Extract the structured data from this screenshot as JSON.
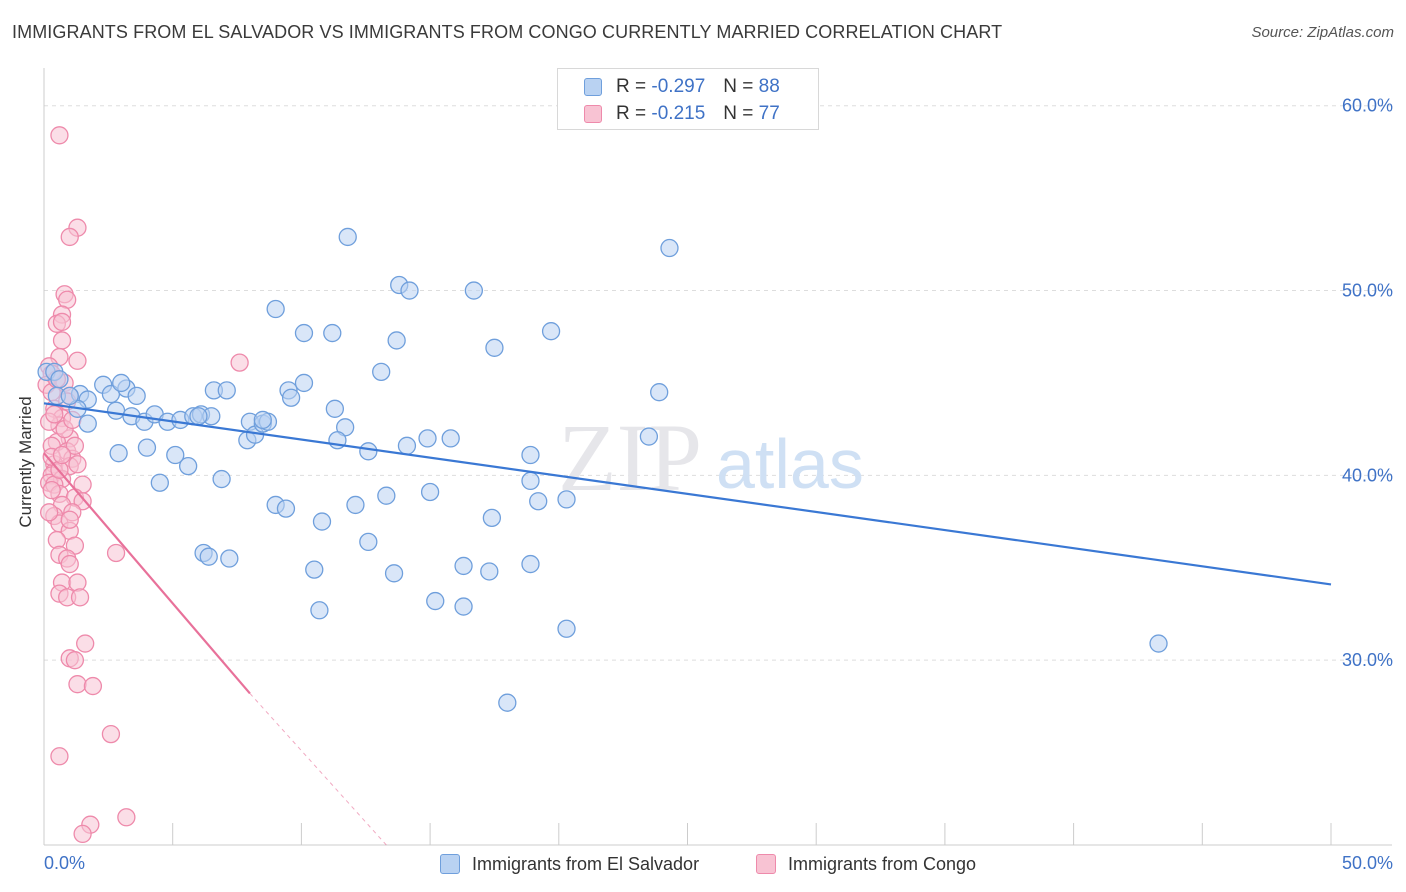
{
  "header": {
    "title": "IMMIGRANTS FROM EL SALVADOR VS IMMIGRANTS FROM CONGO CURRENTLY MARRIED CORRELATION CHART",
    "source": "Source: ZipAtlas.com"
  },
  "legend_top": {
    "rows": [
      {
        "r_label": "R =",
        "r_value": "-0.297",
        "n_label": "N =",
        "n_value": "88"
      },
      {
        "r_label": "R =",
        "r_value": "-0.215",
        "n_label": "N =",
        "n_value": "77"
      }
    ]
  },
  "legend_bottom": {
    "items": [
      {
        "label": "Immigrants from El Salvador"
      },
      {
        "label": "Immigrants from Congo"
      }
    ]
  },
  "watermark": {
    "zip": "ZIP",
    "atlas": "atlas"
  },
  "colors": {
    "blue_fill": "#b9d2f2",
    "blue_stroke": "#6f9fdc",
    "blue_line": "#3a78d4",
    "pink_fill": "#f8c3d3",
    "pink_stroke": "#ee8aab",
    "pink_line": "#e8719a",
    "grid": "#dddddd",
    "axis_label": "#3f72c6"
  },
  "chart_data": {
    "type": "scatter",
    "title": "IMMIGRANTS FROM EL SALVADOR VS IMMIGRANTS FROM CONGO CURRENTLY MARRIED CORRELATION CHART",
    "xlabel": "",
    "ylabel": "Currently Married",
    "xlim": [
      0,
      50
    ],
    "ylim": [
      20,
      61.5
    ],
    "x_tick_labels": [
      "0.0%",
      "50.0%"
    ],
    "y_ticks": [
      30,
      40,
      50,
      60
    ],
    "y_tick_labels": [
      "30.0%",
      "40.0%",
      "50.0%",
      "60.0%"
    ],
    "grid": true,
    "legend_position": "top-center",
    "series": [
      {
        "name": "Immigrants from El Salvador",
        "R": -0.297,
        "N": 88,
        "trend": {
          "x": [
            0,
            50
          ],
          "y": [
            43.9,
            34.1
          ]
        },
        "points": [
          [
            0.1,
            45.6
          ],
          [
            0.4,
            45.6
          ],
          [
            0.6,
            45.2
          ],
          [
            0.5,
            44.3
          ],
          [
            1.4,
            44.4
          ],
          [
            1.7,
            44.1
          ],
          [
            2.3,
            44.9
          ],
          [
            2.6,
            44.4
          ],
          [
            3.2,
            44.7
          ],
          [
            3.6,
            44.3
          ],
          [
            1.3,
            43.6
          ],
          [
            1.7,
            42.8
          ],
          [
            2.8,
            43.5
          ],
          [
            3.4,
            43.2
          ],
          [
            3.9,
            42.9
          ],
          [
            4.3,
            43.3
          ],
          [
            4.8,
            42.9
          ],
          [
            5.3,
            43.0
          ],
          [
            5.8,
            43.2
          ],
          [
            6.1,
            43.3
          ],
          [
            6.5,
            43.2
          ],
          [
            6.6,
            44.6
          ],
          [
            7.1,
            44.6
          ],
          [
            2.9,
            41.2
          ],
          [
            4.0,
            41.5
          ],
          [
            5.1,
            41.1
          ],
          [
            5.6,
            40.5
          ],
          [
            4.5,
            39.6
          ],
          [
            6.9,
            39.8
          ],
          [
            7.9,
            41.9
          ],
          [
            8.0,
            42.9
          ],
          [
            8.2,
            42.2
          ],
          [
            8.5,
            42.8
          ],
          [
            8.7,
            42.9
          ],
          [
            9.5,
            44.6
          ],
          [
            9.6,
            44.2
          ],
          [
            10.1,
            45.0
          ],
          [
            11.3,
            43.6
          ],
          [
            11.7,
            42.6
          ],
          [
            11.4,
            41.9
          ],
          [
            12.6,
            41.3
          ],
          [
            13.1,
            45.6
          ],
          [
            14.1,
            41.6
          ],
          [
            14.9,
            42.0
          ],
          [
            15.8,
            42.0
          ],
          [
            12.1,
            38.4
          ],
          [
            9.0,
            38.4
          ],
          [
            9.4,
            38.2
          ],
          [
            10.8,
            37.5
          ],
          [
            12.6,
            36.4
          ],
          [
            13.3,
            38.9
          ],
          [
            15.0,
            39.1
          ],
          [
            10.5,
            34.9
          ],
          [
            13.6,
            34.7
          ],
          [
            16.3,
            35.1
          ],
          [
            17.3,
            34.8
          ],
          [
            18.9,
            35.2
          ],
          [
            15.2,
            33.2
          ],
          [
            16.3,
            32.9
          ],
          [
            10.7,
            32.7
          ],
          [
            7.2,
            35.5
          ],
          [
            6.2,
            35.8
          ],
          [
            6.4,
            35.6
          ],
          [
            17.4,
            37.7
          ],
          [
            19.2,
            38.6
          ],
          [
            20.3,
            38.7
          ],
          [
            18.9,
            39.7
          ],
          [
            18.9,
            41.1
          ],
          [
            23.5,
            42.1
          ],
          [
            23.9,
            44.5
          ],
          [
            11.8,
            52.9
          ],
          [
            13.8,
            50.3
          ],
          [
            14.2,
            50.0
          ],
          [
            16.7,
            50.0
          ],
          [
            9.0,
            49.0
          ],
          [
            10.1,
            47.7
          ],
          [
            11.2,
            47.7
          ],
          [
            13.7,
            47.3
          ],
          [
            17.5,
            46.9
          ],
          [
            19.7,
            47.8
          ],
          [
            24.3,
            52.3
          ],
          [
            18.0,
            27.7
          ],
          [
            20.3,
            31.7
          ],
          [
            43.3,
            30.9
          ],
          [
            8.5,
            43.0
          ],
          [
            6.0,
            43.2
          ],
          [
            3.0,
            45.0
          ],
          [
            1.0,
            44.3
          ]
        ]
      },
      {
        "name": "Immigrants from Congo",
        "R": -0.215,
        "N": 77,
        "trend": {
          "x": [
            0,
            8.0
          ],
          "y": [
            41.2,
            28.2
          ]
        },
        "trend_dashed": {
          "x": [
            8.0,
            13.3
          ],
          "y": [
            28.2,
            20.0
          ]
        },
        "points": [
          [
            0.6,
            58.4
          ],
          [
            1.3,
            53.4
          ],
          [
            1.0,
            52.9
          ],
          [
            0.8,
            49.8
          ],
          [
            0.9,
            49.5
          ],
          [
            0.7,
            48.7
          ],
          [
            0.5,
            48.2
          ],
          [
            0.7,
            48.3
          ],
          [
            0.7,
            47.3
          ],
          [
            1.3,
            46.2
          ],
          [
            0.6,
            46.4
          ],
          [
            0.2,
            45.9
          ],
          [
            0.3,
            45.5
          ],
          [
            0.8,
            45.0
          ],
          [
            0.1,
            44.9
          ],
          [
            0.3,
            44.5
          ],
          [
            1.0,
            44.3
          ],
          [
            0.4,
            43.6
          ],
          [
            0.7,
            43.1
          ],
          [
            0.6,
            42.7
          ],
          [
            0.2,
            42.9
          ],
          [
            1.0,
            42.0
          ],
          [
            0.5,
            41.8
          ],
          [
            0.3,
            41.6
          ],
          [
            0.9,
            41.3
          ],
          [
            1.1,
            40.9
          ],
          [
            0.4,
            40.6
          ],
          [
            1.0,
            40.5
          ],
          [
            1.3,
            40.6
          ],
          [
            0.4,
            40.2
          ],
          [
            0.3,
            40.0
          ],
          [
            0.7,
            39.8
          ],
          [
            0.2,
            39.6
          ],
          [
            0.4,
            39.5
          ],
          [
            1.5,
            39.5
          ],
          [
            0.6,
            39.0
          ],
          [
            1.2,
            38.8
          ],
          [
            1.5,
            38.6
          ],
          [
            0.7,
            38.4
          ],
          [
            1.1,
            38.0
          ],
          [
            0.4,
            37.8
          ],
          [
            0.6,
            37.4
          ],
          [
            1.0,
            37.0
          ],
          [
            0.5,
            36.5
          ],
          [
            1.2,
            36.2
          ],
          [
            2.8,
            35.8
          ],
          [
            0.6,
            35.7
          ],
          [
            0.9,
            35.5
          ],
          [
            1.0,
            35.2
          ],
          [
            0.7,
            34.2
          ],
          [
            1.3,
            34.2
          ],
          [
            0.6,
            33.6
          ],
          [
            0.9,
            33.4
          ],
          [
            1.4,
            33.4
          ],
          [
            1.6,
            30.9
          ],
          [
            1.0,
            30.1
          ],
          [
            1.2,
            30.0
          ],
          [
            1.3,
            28.7
          ],
          [
            1.9,
            28.6
          ],
          [
            2.6,
            26.0
          ],
          [
            0.6,
            24.8
          ],
          [
            1.8,
            21.1
          ],
          [
            3.2,
            21.5
          ],
          [
            1.5,
            20.6
          ],
          [
            7.6,
            46.1
          ],
          [
            0.3,
            41.0
          ],
          [
            0.8,
            42.5
          ],
          [
            1.1,
            43.0
          ],
          [
            0.2,
            38.0
          ],
          [
            0.6,
            40.3
          ],
          [
            0.9,
            44.0
          ],
          [
            1.2,
            41.6
          ],
          [
            0.4,
            43.3
          ],
          [
            0.5,
            45.2
          ],
          [
            0.3,
            39.2
          ],
          [
            0.7,
            41.1
          ],
          [
            1.0,
            37.6
          ]
        ]
      }
    ]
  }
}
